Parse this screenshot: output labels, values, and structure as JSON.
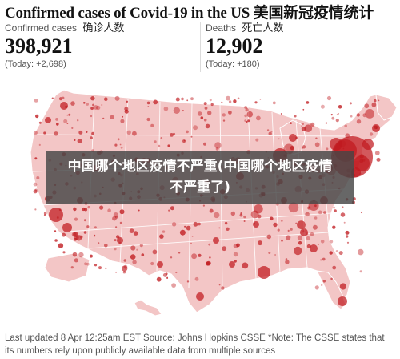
{
  "header": {
    "title": "Confirmed cases of Covid-19 in the US 美国新冠疫情统计"
  },
  "stats": {
    "confirmed": {
      "label": "Confirmed cases",
      "label_cn": "确诊人数",
      "value": "398,921",
      "today": "(Today: +2,698)"
    },
    "deaths": {
      "label": "Deaths",
      "label_cn": "死亡人数",
      "value": "12,902",
      "today": "(Today: +180)"
    }
  },
  "overlay": {
    "text": "中国哪个地区疫情不严重(中国哪个地区疫情不严重了)"
  },
  "footer": {
    "note": "Last updated 8 Apr 12:25am EST Source: Johns Hopkins CSSE *Note: The CSSE states that its numbers rely upon publicly available data from multiple sources"
  },
  "colors": {
    "land": "#f3c6c6",
    "border": "#ffffff",
    "bubble": "#c0191e",
    "overlay": "#464646"
  }
}
